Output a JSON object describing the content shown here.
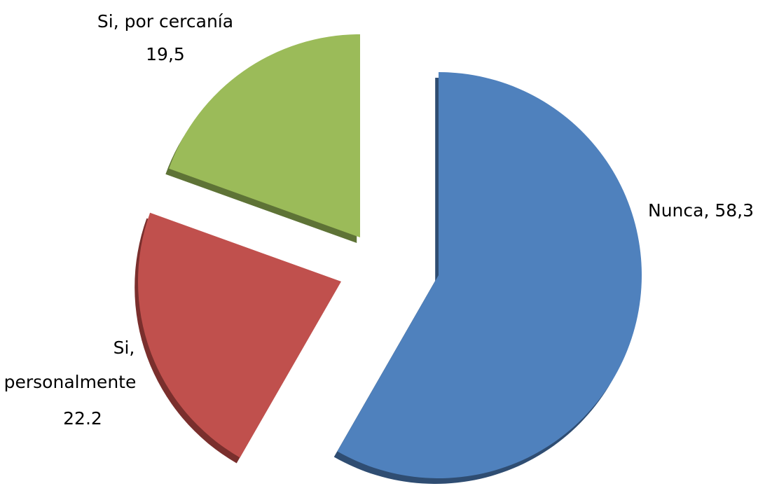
{
  "chart_data": {
    "type": "pie",
    "title": "",
    "slices": [
      {
        "name": "Nunca",
        "value": 58.3,
        "value_label": "58,3",
        "color": "#4f81bd",
        "side_color": "#2f4d72"
      },
      {
        "name": "Si, personalmente",
        "value": 22.2,
        "value_label": "22.2",
        "color": "#c0504d",
        "side_color": "#7a2f2d"
      },
      {
        "name": "Si, por cercania",
        "value": 19.5,
        "value_label": "19,5",
        "color": "#9bbb59",
        "side_color": "#5e7336"
      }
    ],
    "labels": [
      {
        "lines": [
          "Nunca, 58,3"
        ]
      },
      {
        "lines": [
          "Si,",
          "personalmente",
          "22.2"
        ]
      },
      {
        "lines": [
          "Si, por cercanía",
          "19,5"
        ]
      }
    ],
    "exploded": true,
    "style": "3d"
  }
}
